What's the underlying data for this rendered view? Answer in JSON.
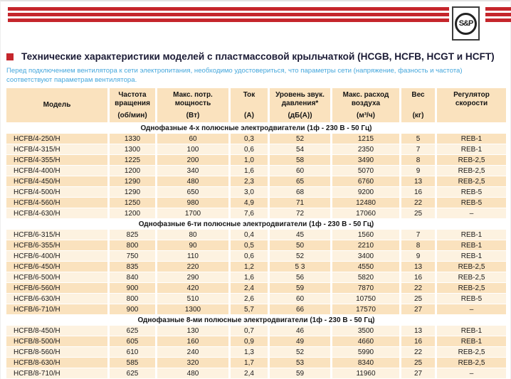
{
  "brand": {
    "logo_text": "S&P"
  },
  "colors": {
    "accent_red": "#c5262c",
    "row_peach": "#fae2be",
    "row_cream": "#fdf2e0",
    "intro_blue": "#45a7dc"
  },
  "title": "Технические характеристики моделей с пластмассовой крыльчаткой (HCGB, HCFB, HCGT и HCFT)",
  "intro": "Перед подключением вентилятора к сети электропитания, необходимо удостовериться, что параметры сети (напряжение, фазность и частота) соответствуют параметрам вентилятора.",
  "table": {
    "columns": [
      {
        "label": "Модель",
        "unit": ""
      },
      {
        "label": "Частота вращения",
        "unit": "(об/мин)"
      },
      {
        "label": "Макс. потр. мощность",
        "unit": "(Вт)"
      },
      {
        "label": "Ток",
        "unit": "(А)"
      },
      {
        "label": "Уровень звук. давления*",
        "unit": "(дБ(А))"
      },
      {
        "label": "Макс. расход воздуха",
        "unit": "(м³/ч)"
      },
      {
        "label": "Вес",
        "unit": "(кг)"
      },
      {
        "label": "Регулятор скорости",
        "unit": ""
      }
    ],
    "sections": [
      {
        "header": "Однофазные 4-х полюсные электродвигатели (1ф - 230 В - 50 Гц)",
        "first_shade": "peach",
        "rows": [
          [
            "HCFB/4-250/H",
            "1330",
            "60",
            "0,3",
            "52",
            "1215",
            "5",
            "REB-1"
          ],
          [
            "HCFB/4-315/H",
            "1300",
            "100",
            "0,6",
            "54",
            "2350",
            "7",
            "REB-1"
          ],
          [
            "HCFB/4-355/H",
            "1225",
            "200",
            "1,0",
            "58",
            "3490",
            "8",
            "REB-2,5"
          ],
          [
            "HCFB/4-400/H",
            "1200",
            "340",
            "1,6",
            "60",
            "5070",
            "9",
            "REB-2,5"
          ],
          [
            "HCFB/4-450/H",
            "1290",
            "480",
            "2,3",
            "65",
            "6760",
            "13",
            "REB-2,5"
          ],
          [
            "HCFB/4-500/H",
            "1290",
            "650",
            "3,0",
            "68",
            "9200",
            "16",
            "REB-5"
          ],
          [
            "HCFB/4-560/H",
            "1250",
            "980",
            "4,9",
            "71",
            "12480",
            "22",
            "REB-5"
          ],
          [
            "HCFB/4-630/H",
            "1200",
            "1700",
            "7,6",
            "72",
            "17060",
            "25",
            "–"
          ]
        ]
      },
      {
        "header": "Однофазные 6-ти полюсные электродвигатели (1ф - 230 В - 50 Гц)",
        "first_shade": "cream",
        "rows": [
          [
            "HCFB/6-315/H",
            "825",
            "80",
            "0,4",
            "45",
            "1560",
            "7",
            "REB-1"
          ],
          [
            "HCFB/6-355/H",
            "800",
            "90",
            "0,5",
            "50",
            "2210",
            "8",
            "REB-1"
          ],
          [
            "HCFB/6-400/H",
            "750",
            "110",
            "0,6",
            "52",
            "3400",
            "9",
            "REB-1"
          ],
          [
            "HCFB/6-450/H",
            "835",
            "220",
            "1,2",
            "5 3",
            "4550",
            "13",
            "REB-2,5"
          ],
          [
            "HCFB/6-500/H",
            "840",
            "290",
            "1,6",
            "56",
            "5820",
            "16",
            "REB-2,5"
          ],
          [
            "HCFB/6-560/H",
            "900",
            "420",
            "2,4",
            "59",
            "7870",
            "22",
            "REB-2,5"
          ],
          [
            "HCFB/6-630/H",
            "800",
            "510",
            "2,6",
            "60",
            "10750",
            "25",
            "REB-5"
          ],
          [
            "HCFB/6-710/H",
            "900",
            "1300",
            "5,7",
            "66",
            "17570",
            "27",
            "–"
          ]
        ]
      },
      {
        "header": "Однофазные 8-ми полюсные электродвигатели (1ф - 230 В - 50 Гц)",
        "first_shade": "cream",
        "rows": [
          [
            "HCFB/8-450/H",
            "625",
            "130",
            "0,7",
            "46",
            "3500",
            "13",
            "REB-1"
          ],
          [
            "HCFB/8-500/H",
            "605",
            "160",
            "0,9",
            "49",
            "4660",
            "16",
            "REB-1"
          ],
          [
            "HCFB/8-560/H",
            "610",
            "240",
            "1,3",
            "52",
            "5990",
            "22",
            "REB-2,5"
          ],
          [
            "HCFB/8-630/H",
            "585",
            "320",
            "1,7",
            "53",
            "8340",
            "25",
            "REB-2,5"
          ],
          [
            "HCFB/8-710/H",
            "625",
            "480",
            "2,4",
            "59",
            "11960",
            "27",
            "–"
          ]
        ]
      }
    ]
  }
}
